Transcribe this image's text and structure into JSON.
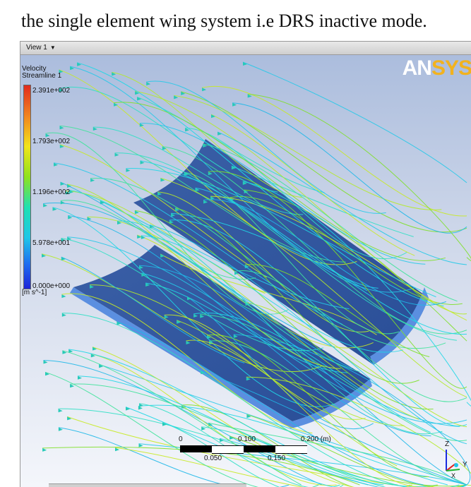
{
  "caption": "the single element wing system i.e DRS inactive mode.",
  "view": {
    "tab_label": "View 1",
    "dropdown_icon": "chevron-down-icon"
  },
  "logo": {
    "left": "AN",
    "right": "SYS",
    "colors": {
      "left": "#ffffff",
      "right": "#f2b21e"
    }
  },
  "legend": {
    "title_line1": "Velocity",
    "title_line2": "Streamline 1",
    "values": [
      "2.391e+002",
      "1.793e+002",
      "1.196e+002",
      "5.978e+001",
      "0.000e+000"
    ],
    "units": "[m s^-1]"
  },
  "scale_bar": {
    "top_labels": [
      "0",
      "0.100",
      "0.200  (m)"
    ],
    "bottom_labels": [
      "0.050",
      "0.150"
    ]
  },
  "axes": {
    "z": "Z",
    "x": "X",
    "y": "Y"
  }
}
